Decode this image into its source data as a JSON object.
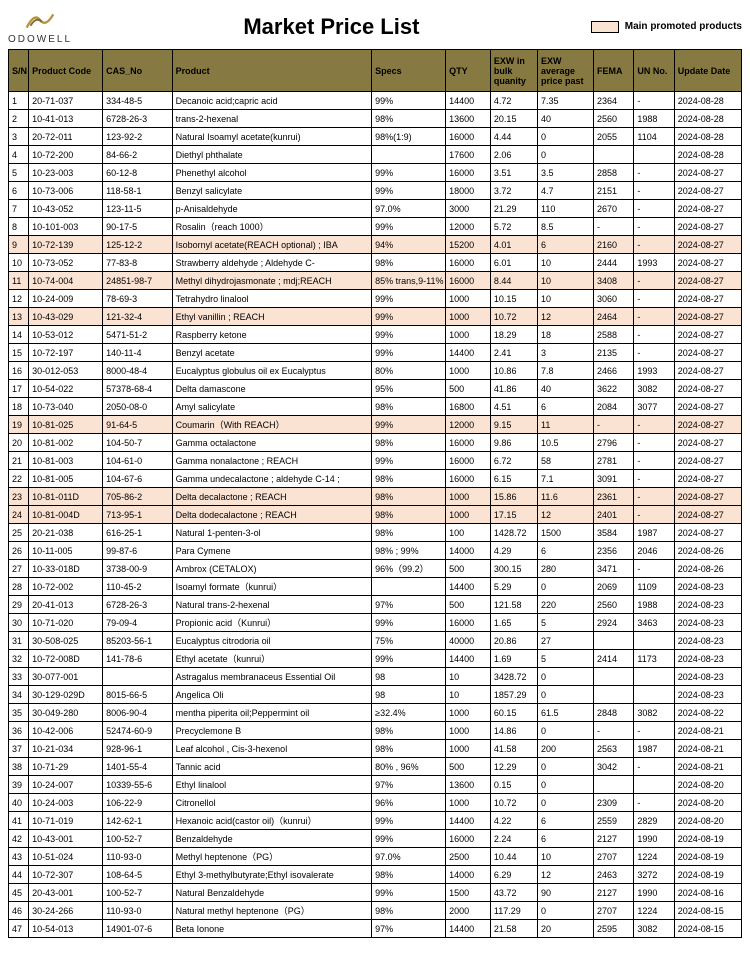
{
  "page_title": "Market Price List",
  "brand": "ODOWELL",
  "legend_label": "Main promoted products",
  "colors": {
    "header_bg": "#867a42",
    "promoted_bg": "#fbe3d4",
    "border": "#000000"
  },
  "columns": [
    "S/N",
    "Product Code",
    "CAS_No",
    "Product",
    "Specs",
    "QTY",
    "EXW in bulk quanity",
    "EXW average price past",
    "FEMA",
    "UN No.",
    "Update Date"
  ],
  "rows": [
    {
      "sn": "1",
      "code": "20-71-037",
      "cas": "334-48-5",
      "product": "Decanoic acid;capric acid",
      "specs": "99%",
      "qty": "14400",
      "exwb": "4.72",
      "exwa": "7.35",
      "fema": "2364",
      "un": "-",
      "date": "2024-08-28",
      "promoted": false
    },
    {
      "sn": "2",
      "code": "10-41-013",
      "cas": "6728-26-3",
      "product": "trans-2-hexenal",
      "specs": "98%",
      "qty": "13600",
      "exwb": "20.15",
      "exwa": "40",
      "fema": "2560",
      "un": "1988",
      "date": "2024-08-28",
      "promoted": false
    },
    {
      "sn": "3",
      "code": "20-72-011",
      "cas": "123-92-2",
      "product": "Natural Isoamyl acetate(kunrui)",
      "specs": "98%(1:9)",
      "qty": "16000",
      "exwb": "4.44",
      "exwa": "0",
      "fema": "2055",
      "un": "1104",
      "date": "2024-08-28",
      "promoted": false
    },
    {
      "sn": "4",
      "code": "10-72-200",
      "cas": "84-66-2",
      "product": "Diethyl phthalate",
      "specs": "",
      "qty": "17600",
      "exwb": "2.06",
      "exwa": "0",
      "fema": "",
      "un": "",
      "date": "2024-08-28",
      "promoted": false
    },
    {
      "sn": "5",
      "code": "10-23-003",
      "cas": "60-12-8",
      "product": "Phenethyl alcohol",
      "specs": "99%",
      "qty": "16000",
      "exwb": "3.51",
      "exwa": "3.5",
      "fema": "2858",
      "un": "-",
      "date": "2024-08-27",
      "promoted": false
    },
    {
      "sn": "6",
      "code": "10-73-006",
      "cas": "118-58-1",
      "product": "Benzyl salicylate",
      "specs": "99%",
      "qty": "18000",
      "exwb": "3.72",
      "exwa": "4.7",
      "fema": "2151",
      "un": "-",
      "date": "2024-08-27",
      "promoted": false
    },
    {
      "sn": "7",
      "code": "10-43-052",
      "cas": "123-11-5",
      "product": "p-Anisaldehyde",
      "specs": "97.0%",
      "qty": "3000",
      "exwb": "21.29",
      "exwa": "110",
      "fema": "2670",
      "un": "-",
      "date": "2024-08-27",
      "promoted": false
    },
    {
      "sn": "8",
      "code": "10-101-003",
      "cas": "90-17-5",
      "product": "Rosalin（reach 1000）",
      "specs": "99%",
      "qty": "12000",
      "exwb": "5.72",
      "exwa": "8.5",
      "fema": "-",
      "un": "-",
      "date": "2024-08-27",
      "promoted": false
    },
    {
      "sn": "9",
      "code": "10-72-139",
      "cas": "125-12-2",
      "product": "Isobornyl acetate(REACH optional) ; IBA",
      "specs": "94%",
      "qty": "15200",
      "exwb": "4.01",
      "exwa": "6",
      "fema": "2160",
      "un": "-",
      "date": "2024-08-27",
      "promoted": true
    },
    {
      "sn": "10",
      "code": "10-73-052",
      "cas": "77-83-8",
      "product": "Strawberry aldehyde ; Aldehyde C-",
      "specs": "98%",
      "qty": "16000",
      "exwb": "6.01",
      "exwa": "10",
      "fema": "2444",
      "un": "1993",
      "date": "2024-08-27",
      "promoted": false
    },
    {
      "sn": "11",
      "code": "10-74-004",
      "cas": "24851-98-7",
      "product": "Methyl dihydrojasmonate ; mdj;REACH",
      "specs": "85% trans,9-11%",
      "qty": "16000",
      "exwb": "8.44",
      "exwa": "10",
      "fema": "3408",
      "un": "-",
      "date": "2024-08-27",
      "promoted": true
    },
    {
      "sn": "12",
      "code": "10-24-009",
      "cas": "78-69-3",
      "product": "Tetrahydro linalool",
      "specs": "99%",
      "qty": "1000",
      "exwb": "10.15",
      "exwa": "10",
      "fema": "3060",
      "un": "-",
      "date": "2024-08-27",
      "promoted": false
    },
    {
      "sn": "13",
      "code": "10-43-029",
      "cas": "121-32-4",
      "product": "Ethyl vanillin ; REACH",
      "specs": "99%",
      "qty": "1000",
      "exwb": "10.72",
      "exwa": "12",
      "fema": "2464",
      "un": "-",
      "date": "2024-08-27",
      "promoted": true
    },
    {
      "sn": "14",
      "code": "10-53-012",
      "cas": "5471-51-2",
      "product": "Raspberry ketone",
      "specs": "99%",
      "qty": "1000",
      "exwb": "18.29",
      "exwa": "18",
      "fema": "2588",
      "un": "-",
      "date": "2024-08-27",
      "promoted": false
    },
    {
      "sn": "15",
      "code": "10-72-197",
      "cas": "140-11-4",
      "product": "Benzyl acetate",
      "specs": "99%",
      "qty": "14400",
      "exwb": "2.41",
      "exwa": "3",
      "fema": "2135",
      "un": "-",
      "date": "2024-08-27",
      "promoted": false
    },
    {
      "sn": "16",
      "code": "30-012-053",
      "cas": "8000-48-4",
      "product": "Eucalyptus globulus oil ex Eucalyptus",
      "specs": "80%",
      "qty": "1000",
      "exwb": "10.86",
      "exwa": "7.8",
      "fema": "2466",
      "un": "1993",
      "date": "2024-08-27",
      "promoted": false
    },
    {
      "sn": "17",
      "code": "10-54-022",
      "cas": "57378-68-4",
      "product": "Delta damascone",
      "specs": "95%",
      "qty": "500",
      "exwb": "41.86",
      "exwa": "40",
      "fema": "3622",
      "un": "3082",
      "date": "2024-08-27",
      "promoted": false
    },
    {
      "sn": "18",
      "code": "10-73-040",
      "cas": "2050-08-0",
      "product": "Amyl salicylate",
      "specs": "98%",
      "qty": "16800",
      "exwb": "4.51",
      "exwa": "6",
      "fema": "2084",
      "un": "3077",
      "date": "2024-08-27",
      "promoted": false
    },
    {
      "sn": "19",
      "code": "10-81-025",
      "cas": "91-64-5",
      "product": "Coumarin（With REACH）",
      "specs": "99%",
      "qty": "12000",
      "exwb": "9.15",
      "exwa": "11",
      "fema": "-",
      "un": "-",
      "date": "2024-08-27",
      "promoted": true
    },
    {
      "sn": "20",
      "code": "10-81-002",
      "cas": "104-50-7",
      "product": "Gamma octalactone",
      "specs": "98%",
      "qty": "16000",
      "exwb": "9.86",
      "exwa": "10.5",
      "fema": "2796",
      "un": "-",
      "date": "2024-08-27",
      "promoted": false
    },
    {
      "sn": "21",
      "code": "10-81-003",
      "cas": "104-61-0",
      "product": "Gamma nonalactone ; REACH",
      "specs": "99%",
      "qty": "16000",
      "exwb": "6.72",
      "exwa": "58",
      "fema": "2781",
      "un": "-",
      "date": "2024-08-27",
      "promoted": false
    },
    {
      "sn": "22",
      "code": "10-81-005",
      "cas": "104-67-6",
      "product": "Gamma undecalactone ; aldehyde C-14 ;",
      "specs": "98%",
      "qty": "16000",
      "exwb": "6.15",
      "exwa": "7.1",
      "fema": "3091",
      "un": "-",
      "date": "2024-08-27",
      "promoted": false
    },
    {
      "sn": "23",
      "code": "10-81-011D",
      "cas": "705-86-2",
      "product": "Delta decalactone ; REACH",
      "specs": "98%",
      "qty": "1000",
      "exwb": "15.86",
      "exwa": "11.6",
      "fema": "2361",
      "un": "-",
      "date": "2024-08-27",
      "promoted": true
    },
    {
      "sn": "24",
      "code": "10-81-004D",
      "cas": "713-95-1",
      "product": "Delta dodecalactone ; REACH",
      "specs": "98%",
      "qty": "1000",
      "exwb": "17.15",
      "exwa": "12",
      "fema": "2401",
      "un": "-",
      "date": "2024-08-27",
      "promoted": true
    },
    {
      "sn": "25",
      "code": "20-21-038",
      "cas": "616-25-1",
      "product": "Natural 1-penten-3-ol",
      "specs": "98%",
      "qty": "100",
      "exwb": "1428.72",
      "exwa": "1500",
      "fema": "3584",
      "un": "1987",
      "date": "2024-08-27",
      "promoted": false
    },
    {
      "sn": "26",
      "code": "10-11-005",
      "cas": "99-87-6",
      "product": "Para Cymene",
      "specs": "98% ; 99%",
      "qty": "14000",
      "exwb": "4.29",
      "exwa": "6",
      "fema": "2356",
      "un": "2046",
      "date": "2024-08-26",
      "promoted": false
    },
    {
      "sn": "27",
      "code": "10-33-018D",
      "cas": "3738-00-9",
      "product": "Ambrox (CETALOX)",
      "specs": "96%（99.2）",
      "qty": "500",
      "exwb": "300.15",
      "exwa": "280",
      "fema": "3471",
      "un": "-",
      "date": "2024-08-26",
      "promoted": false
    },
    {
      "sn": "28",
      "code": "10-72-002",
      "cas": "110-45-2",
      "product": "Isoamyl formate（kunrui）",
      "specs": "",
      "qty": "14400",
      "exwb": "5.29",
      "exwa": "0",
      "fema": "2069",
      "un": "1109",
      "date": "2024-08-23",
      "promoted": false
    },
    {
      "sn": "29",
      "code": "20-41-013",
      "cas": "6728-26-3",
      "product": "Natural trans-2-hexenal",
      "specs": "97%",
      "qty": "500",
      "exwb": "121.58",
      "exwa": "220",
      "fema": "2560",
      "un": "1988",
      "date": "2024-08-23",
      "promoted": false
    },
    {
      "sn": "30",
      "code": "10-71-020",
      "cas": "79-09-4",
      "product": "Propionic acid（Kunrui）",
      "specs": "99%",
      "qty": "16000",
      "exwb": "1.65",
      "exwa": "5",
      "fema": "2924",
      "un": "3463",
      "date": "2024-08-23",
      "promoted": false
    },
    {
      "sn": "31",
      "code": "30-508-025",
      "cas": "85203-56-1",
      "product": "Eucalyptus citrodoria oil",
      "specs": "75%",
      "qty": "40000",
      "exwb": "20.86",
      "exwa": "27",
      "fema": "",
      "un": "",
      "date": "2024-08-23",
      "promoted": false
    },
    {
      "sn": "32",
      "code": "10-72-008D",
      "cas": "141-78-6",
      "product": "Ethyl acetate（kunrui）",
      "specs": "99%",
      "qty": "14400",
      "exwb": "1.69",
      "exwa": "5",
      "fema": "2414",
      "un": "1173",
      "date": "2024-08-23",
      "promoted": false
    },
    {
      "sn": "33",
      "code": "30-077-001",
      "cas": "",
      "product": "Astragalus membranaceus Essential Oil",
      "specs": "98",
      "qty": "10",
      "exwb": "3428.72",
      "exwa": "0",
      "fema": "",
      "un": "",
      "date": "2024-08-23",
      "promoted": false
    },
    {
      "sn": "34",
      "code": "30-129-029D",
      "cas": "8015-66-5",
      "product": "Angelica Oli",
      "specs": "98",
      "qty": "10",
      "exwb": "1857.29",
      "exwa": "0",
      "fema": "",
      "un": "",
      "date": "2024-08-23",
      "promoted": false
    },
    {
      "sn": "35",
      "code": "30-049-280",
      "cas": "8006-90-4",
      "product": "mentha piperita oil;Peppermint oil",
      "specs": "≥32.4%",
      "qty": "1000",
      "exwb": "60.15",
      "exwa": "61.5",
      "fema": "2848",
      "un": "3082",
      "date": "2024-08-22",
      "promoted": false
    },
    {
      "sn": "36",
      "code": "10-42-006",
      "cas": "52474-60-9",
      "product": "Precyclemone B",
      "specs": "98%",
      "qty": "1000",
      "exwb": "14.86",
      "exwa": "0",
      "fema": "-",
      "un": "-",
      "date": "2024-08-21",
      "promoted": false
    },
    {
      "sn": "37",
      "code": "10-21-034",
      "cas": "928-96-1",
      "product": "Leaf alcohol , Cis-3-hexenol",
      "specs": "98%",
      "qty": "1000",
      "exwb": "41.58",
      "exwa": "200",
      "fema": "2563",
      "un": "1987",
      "date": "2024-08-21",
      "promoted": false
    },
    {
      "sn": "38",
      "code": "10-71-29",
      "cas": "1401-55-4",
      "product": "Tannic acid",
      "specs": "80% , 96%",
      "qty": "500",
      "exwb": "12.29",
      "exwa": "0",
      "fema": "3042",
      "un": "-",
      "date": "2024-08-21",
      "promoted": false
    },
    {
      "sn": "39",
      "code": "10-24-007",
      "cas": "10339-55-6",
      "product": "Ethyl linalool",
      "specs": "97%",
      "qty": "13600",
      "exwb": "0.15",
      "exwa": "0",
      "fema": "",
      "un": "",
      "date": "2024-08-20",
      "promoted": false
    },
    {
      "sn": "40",
      "code": "10-24-003",
      "cas": "106-22-9",
      "product": "Citronellol",
      "specs": "96%",
      "qty": "1000",
      "exwb": "10.72",
      "exwa": "0",
      "fema": "2309",
      "un": "-",
      "date": "2024-08-20",
      "promoted": false
    },
    {
      "sn": "41",
      "code": "10-71-019",
      "cas": "142-62-1",
      "product": "Hexanoic acid(castor oil)（kunrui）",
      "specs": "99%",
      "qty": "14400",
      "exwb": "4.22",
      "exwa": "6",
      "fema": "2559",
      "un": "2829",
      "date": "2024-08-20",
      "promoted": false
    },
    {
      "sn": "42",
      "code": "10-43-001",
      "cas": "100-52-7",
      "product": "Benzaldehyde",
      "specs": "99%",
      "qty": "16000",
      "exwb": "2.24",
      "exwa": "6",
      "fema": "2127",
      "un": "1990",
      "date": "2024-08-19",
      "promoted": false
    },
    {
      "sn": "43",
      "code": "10-51-024",
      "cas": "110-93-0",
      "product": "Methyl heptenone（PG）",
      "specs": "97.0%",
      "qty": "2500",
      "exwb": "10.44",
      "exwa": "10",
      "fema": "2707",
      "un": "1224",
      "date": "2024-08-19",
      "promoted": false
    },
    {
      "sn": "44",
      "code": "10-72-307",
      "cas": "108-64-5",
      "product": "Ethyl 3-methylbutyrate;Ethyl isovalerate",
      "specs": "98%",
      "qty": "14000",
      "exwb": "6.29",
      "exwa": "12",
      "fema": "2463",
      "un": "3272",
      "date": "2024-08-19",
      "promoted": false
    },
    {
      "sn": "45",
      "code": "20-43-001",
      "cas": "100-52-7",
      "product": "Natural Benzaldehyde",
      "specs": "99%",
      "qty": "1500",
      "exwb": "43.72",
      "exwa": "90",
      "fema": "2127",
      "un": "1990",
      "date": "2024-08-16",
      "promoted": false
    },
    {
      "sn": "46",
      "code": "30-24-266",
      "cas": "110-93-0",
      "product": "Natural methyl heptenone（PG）",
      "specs": "98%",
      "qty": "2000",
      "exwb": "117.29",
      "exwa": "0",
      "fema": "2707",
      "un": "1224",
      "date": "2024-08-15",
      "promoted": false
    },
    {
      "sn": "47",
      "code": "10-54-013",
      "cas": "14901-07-6",
      "product": "Beta Ionone",
      "specs": "97%",
      "qty": "14400",
      "exwb": "21.58",
      "exwa": "20",
      "fema": "2595",
      "un": "3082",
      "date": "2024-08-15",
      "promoted": false
    }
  ]
}
